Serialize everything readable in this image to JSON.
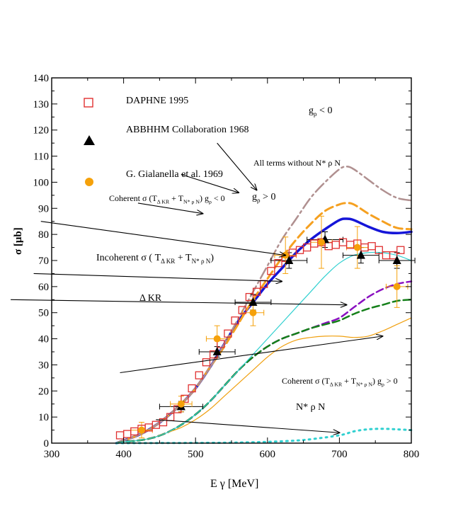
{
  "chart_data": {
    "type": "scatter",
    "xlabel": "E γ  [MeV]",
    "ylabel": "σ  [μb]",
    "xlim": [
      300,
      800
    ],
    "ylim": [
      0,
      140
    ],
    "x_ticks": [
      300,
      400,
      500,
      600,
      700,
      800
    ],
    "y_ticks": [
      0,
      10,
      20,
      30,
      40,
      50,
      60,
      70,
      80,
      90,
      100,
      110,
      120,
      130,
      140
    ],
    "legend": {
      "placement": "top-left",
      "entries": [
        {
          "label": "DAPHNE 1995",
          "marker": "open-square",
          "color": "#e03030"
        },
        {
          "label": "ABBHHM Collaboration 1968",
          "marker": "filled-triangle",
          "color": "#000000"
        },
        {
          "label": "G. Gialanella et al. 1969",
          "marker": "filled-circle",
          "color": "#f5a10a"
        }
      ]
    },
    "data_series": [
      {
        "name": "DAPHNE 1995",
        "marker": "open-square",
        "color": "#e03030",
        "x": [
          395,
          405,
          415,
          425,
          435,
          445,
          455,
          465,
          475,
          485,
          495,
          505,
          515,
          525,
          535,
          545,
          555,
          565,
          575,
          585,
          595,
          605,
          615,
          625,
          635,
          645,
          655,
          665,
          675,
          685,
          695,
          705,
          715,
          725,
          735,
          745,
          755,
          765,
          775,
          785
        ],
        "y": [
          3,
          3.5,
          4.5,
          5.5,
          6,
          7,
          8,
          10,
          13,
          17,
          21,
          26,
          31,
          34,
          38,
          42,
          47,
          51,
          56,
          58,
          61,
          66,
          69,
          71,
          73,
          74,
          75,
          76.5,
          77,
          75.5,
          76,
          77,
          76,
          76.5,
          75,
          75.5,
          74,
          72,
          72,
          74
        ]
      },
      {
        "name": "ABBHHM Collaboration 1968",
        "marker": "filled-triangle",
        "color": "#000000",
        "x": [
          480,
          530,
          580,
          630,
          680,
          730,
          780
        ],
        "y": [
          14,
          35,
          54,
          70,
          78,
          72,
          70
        ],
        "x_err": [
          30,
          25,
          25,
          25,
          25,
          25,
          25
        ],
        "y_err": [
          2,
          2,
          3,
          3,
          3,
          3,
          3
        ]
      },
      {
        "name": "G. Gialanella et al. 1969",
        "marker": "filled-circle",
        "color": "#f5a10a",
        "x": [
          425,
          480,
          530,
          580,
          625,
          675,
          725,
          780
        ],
        "y": [
          5,
          15,
          40,
          50,
          72,
          77,
          75,
          60
        ],
        "x_err": [
          15,
          15,
          15,
          15,
          15,
          15,
          15,
          15
        ],
        "y_err": [
          3,
          3,
          5,
          5,
          7,
          10,
          8,
          8
        ]
      }
    ],
    "curves": [
      {
        "name": "Coherent σ (TΔKR + TN*ρN) gρ < 0",
        "color": "#1515d8",
        "dash": "solid",
        "width": 3.5,
        "x": [
          390,
          400,
          420,
          440,
          460,
          480,
          500,
          520,
          540,
          560,
          580,
          600,
          620,
          640,
          660,
          680,
          700,
          710,
          720,
          740,
          760,
          780,
          800
        ],
        "y": [
          0,
          1,
          3,
          6,
          10,
          15,
          21,
          29,
          38,
          47,
          54,
          61,
          67,
          73,
          78,
          82,
          85.5,
          86,
          85.5,
          83,
          81,
          80.5,
          81
        ]
      },
      {
        "name": "All terms without N* ρ N",
        "color": "#f5a020",
        "dash": "12,6",
        "width": 3,
        "x": [
          390,
          400,
          420,
          440,
          460,
          480,
          500,
          520,
          540,
          560,
          580,
          600,
          620,
          640,
          660,
          680,
          700,
          710,
          720,
          740,
          760,
          780,
          800
        ],
        "y": [
          0,
          1,
          3,
          6,
          10,
          15,
          21,
          29,
          37,
          46,
          55,
          63,
          71,
          78,
          84,
          89,
          91.5,
          92,
          91.5,
          88,
          85,
          82.5,
          82
        ]
      },
      {
        "name": "gρ < 0",
        "color": "#b09090",
        "dash": "16,5,3,5",
        "width": 2.5,
        "x": [
          390,
          400,
          420,
          440,
          460,
          480,
          500,
          520,
          540,
          560,
          580,
          600,
          620,
          640,
          660,
          680,
          700,
          710,
          720,
          740,
          760,
          780,
          800
        ],
        "y": [
          0,
          1,
          3,
          6,
          10,
          15,
          21,
          29,
          38,
          48,
          58,
          68,
          78,
          86,
          94,
          100,
          105,
          106,
          105,
          101,
          97,
          94,
          93
        ]
      },
      {
        "name": "Incoherent σ (TΔKR + TN*ρN)",
        "color": "#8a10c0",
        "dash": "10,5",
        "width": 2.5,
        "x": [
          390,
          400,
          420,
          440,
          460,
          480,
          500,
          520,
          540,
          560,
          580,
          600,
          620,
          640,
          660,
          680,
          700,
          720,
          740,
          760,
          780,
          800
        ],
        "y": [
          0,
          0.5,
          1,
          2,
          4,
          7,
          11,
          16,
          22,
          28,
          33,
          37,
          40,
          42,
          44,
          46,
          48,
          52,
          56,
          59,
          61,
          62
        ]
      },
      {
        "name": "Δ KR",
        "color": "#15801a",
        "dash": "10,5",
        "width": 2.5,
        "x": [
          390,
          400,
          420,
          440,
          460,
          480,
          500,
          520,
          540,
          560,
          580,
          600,
          620,
          640,
          660,
          680,
          700,
          720,
          740,
          760,
          780,
          800
        ],
        "y": [
          0,
          0.5,
          1,
          2,
          4,
          7,
          11,
          16,
          22,
          28,
          33,
          37,
          40,
          42,
          44,
          45.5,
          47,
          49.5,
          51.5,
          53,
          54.5,
          55
        ]
      },
      {
        "name": "Coherent σ (TΔKR + TN*ρN) gρ > 0",
        "color": "#f0a010",
        "dash": "solid",
        "width": 1.2,
        "x": [
          390,
          400,
          420,
          440,
          460,
          480,
          500,
          520,
          540,
          560,
          580,
          600,
          620,
          640,
          660,
          680,
          700,
          720,
          740,
          760,
          780,
          800
        ],
        "y": [
          0,
          0.5,
          1,
          2,
          4,
          6,
          9,
          13,
          18,
          23,
          28,
          33,
          37,
          39.5,
          40.5,
          41,
          41,
          40.5,
          41,
          43,
          45.5,
          48
        ]
      },
      {
        "name": "cyan solid",
        "color": "#30d0d0",
        "dash": "solid",
        "width": 1.2,
        "x": [
          390,
          400,
          420,
          440,
          460,
          480,
          500,
          520,
          540,
          560,
          580,
          600,
          620,
          640,
          660,
          680,
          700,
          720,
          740,
          760,
          780,
          800
        ],
        "y": [
          0,
          0.5,
          1,
          2,
          4,
          7,
          11,
          16,
          22,
          28,
          34,
          40,
          46,
          52,
          58,
          64,
          69,
          72,
          73,
          73,
          72,
          70
        ]
      },
      {
        "name": "N* ρ N",
        "color": "#30d0d0",
        "dash": "2,6",
        "width": 3,
        "x": [
          390,
          500,
          550,
          600,
          650,
          700,
          720,
          740,
          760,
          780,
          800
        ],
        "y": [
          0,
          0.1,
          0.2,
          0.5,
          1.2,
          3,
          4.5,
          5.3,
          5.5,
          5.3,
          5
        ]
      }
    ],
    "annotations": [
      {
        "id": "g-neg",
        "text": "gρ < 0",
        "at": [
          470,
          123
        ],
        "arrow_from": [
          530,
          115
        ],
        "arrow_to": [
          585,
          97
        ]
      },
      {
        "id": "all-terms",
        "text": "All terms without N* ρ N",
        "at": [
          355,
          106.5
        ],
        "arrow_from": [
          480,
          103
        ],
        "arrow_to": [
          560,
          96
        ]
      },
      {
        "id": "g-pos",
        "text": "gρ > 0",
        "at": [
          400,
          93
        ],
        "arrow_from": [
          420,
          92
        ],
        "arrow_to": [
          510,
          88
        ]
      },
      {
        "id": "coherent-neg",
        "text": "Coherent σ (TΔKR + TN*ρN) gρ < 0",
        "at": [
          150,
          93
        ],
        "arrow_from": [
          285,
          85
        ],
        "arrow_to": [
          625,
          72
        ]
      },
      {
        "id": "incoherent",
        "text": "Incoherent σ ( TΔKR + TN*ρN)",
        "at": [
          135,
          70
        ],
        "arrow_from": [
          275,
          65
        ],
        "arrow_to": [
          620,
          62
        ]
      },
      {
        "id": "delta-kr",
        "text": "Δ KR",
        "at": [
          210,
          54.5
        ],
        "arrow_from": [
          243,
          55
        ],
        "arrow_to": [
          710,
          53
        ]
      },
      {
        "id": "coherent-pos",
        "text": "Coherent σ (TΔKR + TN*ρN) gρ > 0",
        "at": [
          395,
          24
        ],
        "arrow_from": [
          395,
          27
        ],
        "arrow_to": [
          760,
          41
        ]
      },
      {
        "id": "nstar",
        "text": "N* ρ N",
        "at": [
          420,
          13
        ],
        "arrow_from": [
          445,
          9
        ],
        "arrow_to": [
          700,
          4
        ]
      }
    ]
  },
  "axes": {
    "xlabel": "E γ  [MeV]",
    "ylabel": "σ  [μb]"
  },
  "legend": {
    "daphne": "DAPHNE 1995",
    "abbhhm": "ABBHHM Collaboration 1968",
    "gialanella": "G. Gialanella et al. 1969"
  },
  "labels": {
    "g_neg": {
      "g": "g",
      "sub": "ρ",
      "rest": " < 0"
    },
    "all_terms": "All terms without N* ρ N",
    "g_pos": {
      "g": "g",
      "sub": "ρ",
      "rest": " > 0"
    },
    "coherent_neg": {
      "a": "Coherent  σ  (T",
      "s1": "Δ KR",
      "b": " + T",
      "s2": "N* ρ N",
      "c": ") g",
      "s3": "ρ",
      "d": " < 0"
    },
    "incoherent": {
      "a": "Incoherent  σ ( T",
      "s1": "Δ KR",
      "b": " + T",
      "s2": "N* ρ N",
      "c": ")"
    },
    "delta_kr": "Δ KR",
    "coherent_pos": {
      "a": "Coherent  σ  (T",
      "s1": "Δ KR",
      "b": " + T",
      "s2": "N* ρ N",
      "c": ") g",
      "s3": "ρ",
      "d": " > 0"
    },
    "nstar": "N* ρ N"
  }
}
